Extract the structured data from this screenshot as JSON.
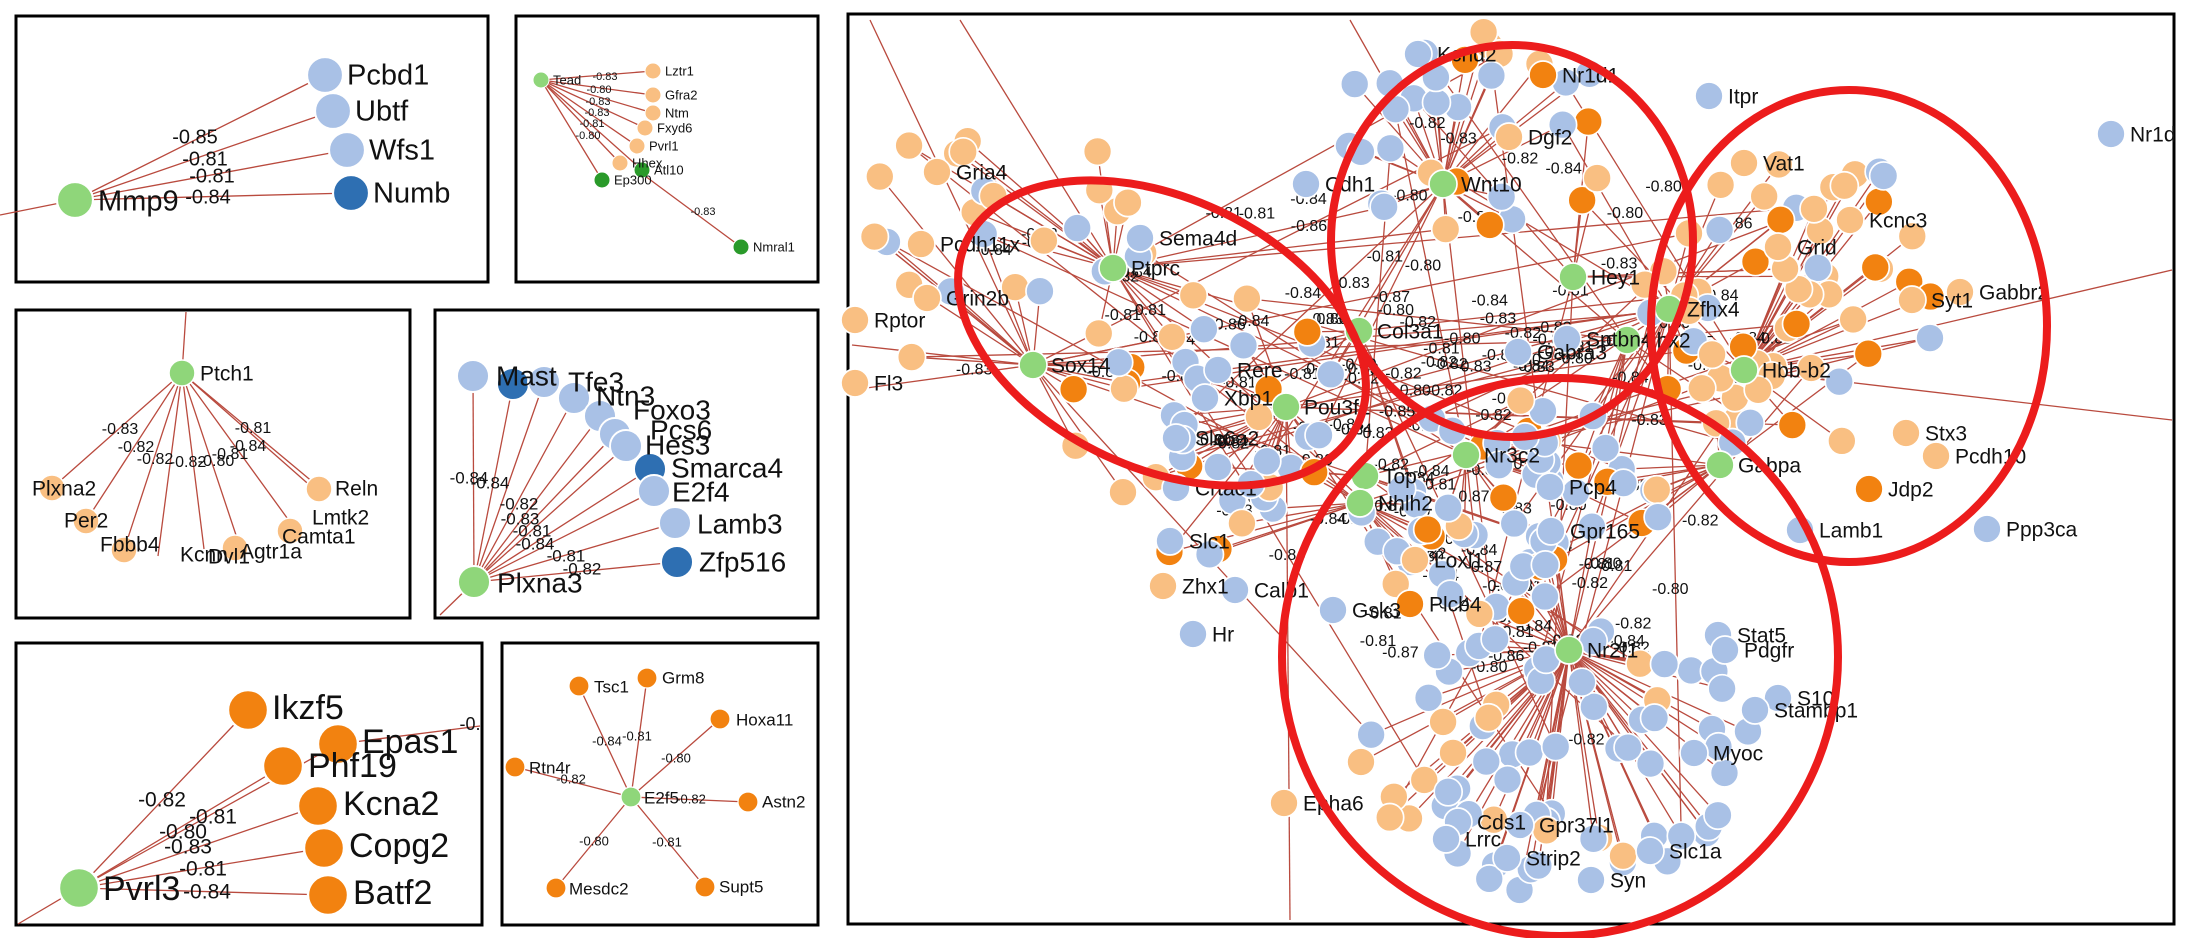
{
  "colors": {
    "green": "#8fd67a",
    "light_orange": "#f9bf82",
    "orange": "#f28210",
    "light_blue": "#a9c1e6",
    "dark_blue": "#2e6fb2",
    "dark_green": "#2a9a2a",
    "edge": "#b94a3e",
    "ring": "#ec1c1c"
  },
  "panels": {
    "mmp9": {
      "nodes": [
        "Mmp9",
        "Pcbd1",
        "Ubtf",
        "Wfs1",
        "Numb"
      ],
      "weights": [
        "-0.85",
        "-0.81",
        "-0.81",
        "-0.84"
      ]
    },
    "tead": {
      "nodes": [
        "Tead",
        "Lztr1",
        "Gfra2",
        "Ntm",
        "Fxyd6",
        "Pvrl1",
        "Hhex",
        "Ep300",
        "Atl10",
        "Nmral1"
      ],
      "weights": [
        "-0.83",
        "-0.80",
        "-0.83",
        "-0.83",
        "-0.81",
        "-0.80",
        "-0.83"
      ]
    },
    "ptch1": {
      "nodes": [
        "Ptch1",
        "Plxna2",
        "Per2",
        "Fbbb4",
        "Kcnn",
        "Dvl1",
        "Agtr1a",
        "Camta1",
        "Lmtk2",
        "Reln"
      ],
      "weights": [
        "-0.83",
        "-0.82",
        "-0.82",
        "-0.82",
        "-0.80",
        "-0.81",
        "-0.84",
        "-0.81"
      ]
    },
    "plxna3": {
      "nodes": [
        "Plxna3",
        "Mast",
        "Tfe3",
        "Ntn3",
        "Foxo3",
        "Pcs6",
        "Hes3",
        "Smarca4",
        "E2f4",
        "Lamb3",
        "Zfp516"
      ],
      "weights": [
        "-0.84",
        "-0.84",
        "-0.82",
        "-0.83",
        "-0.81",
        "-0.84",
        "-0.81",
        "-0.82"
      ]
    },
    "pvrl3": {
      "nodes": [
        "Pvrl3",
        "Ikzf5",
        "Epas1",
        "Phf19",
        "Kcna2",
        "Copg2",
        "Batf2"
      ],
      "weights": [
        "-0.82",
        "-0.81",
        "-0.80",
        "-0.83",
        "-0.81",
        "-0.84"
      ]
    },
    "e2f5": {
      "nodes": [
        "E2f5",
        "Tsc1",
        "Grm8",
        "Hoxa11",
        "Rtn4r",
        "Astn2",
        "Mesdc2",
        "Supt5"
      ],
      "weights": [
        "-0.84",
        "-0.81",
        "-0.80",
        "-0.82",
        "-0.82",
        "-0.80",
        "-0.81"
      ]
    },
    "network": {
      "hubs": [
        "Ptprc",
        "Sox14",
        "Pou3f1",
        "Wnt10",
        "Hey1",
        "Col3a1",
        "Hbb-b2",
        "Zfhx4",
        "Lhx2",
        "Nr2f1",
        "Nr3c2",
        "Top",
        "Nhlh2",
        "Gabpa"
      ],
      "labels": [
        "Epha6",
        "Nr1d",
        "Ppp3ca",
        "Hr",
        "Calb1",
        "Zhx1",
        "Slc1",
        "Crtac1",
        "Slc6a2",
        "Xbp1",
        "Rere",
        "Sema4d",
        "Pcdh11x",
        "Grin2b",
        "Rptor",
        "Fl3",
        "Gria4",
        "Gabra3",
        "Sptbn4",
        "Loxl1",
        "Plcb4",
        "Gpr165",
        "Pcp4",
        "Stat5",
        "Pdgfr",
        "S10",
        "Myoc",
        "Cds1",
        "Lrrc",
        "Strip2",
        "Syn",
        "Slc1a",
        "Stx3",
        "Jdp2",
        "Syt1",
        "Pcdh10",
        "Itpr",
        "Vat1",
        "Grid",
        "Kcnd2",
        "Nr1d1",
        "Cdh1",
        "Gpr37l1",
        "Stambp1",
        "Dgf2",
        "Kcnc3",
        "Gabbr2",
        "Lamb1",
        "Gsk3"
      ],
      "weights": [
        "-0.86",
        "-0.81",
        "-0.83",
        "-0.82",
        "-0.80",
        "-0.84",
        "-0.80",
        "-0.81",
        "-0.82",
        "-0.84",
        "-0.87",
        "-0.85",
        "-0.82",
        "-0.81",
        "-0.83",
        "-0.84",
        "-0.80",
        "-0.81",
        "-0.84",
        "-0.82",
        "-0.80",
        "-0.83"
      ]
    }
  }
}
